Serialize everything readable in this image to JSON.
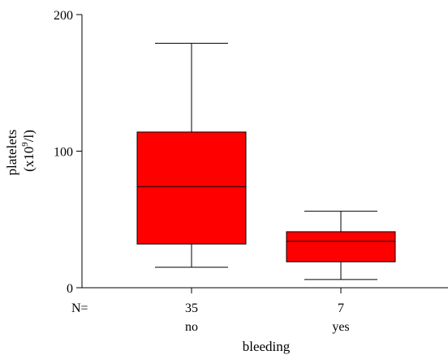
{
  "chart_data": {
    "type": "boxplot",
    "title": "",
    "xlabel": "bleeding",
    "ylabel_line1": "platelets",
    "ylabel_line2_prefix": "(x10",
    "ylabel_line2_sup": "9",
    "ylabel_line2_suffix": "/l)",
    "ylim": [
      0,
      200
    ],
    "yticks": [
      "0",
      "100",
      "200"
    ],
    "n_label": "N=",
    "categories": [
      "no",
      "yes"
    ],
    "counts": [
      "35",
      "7"
    ],
    "boxes": [
      {
        "category": "no",
        "whisker_low": 15,
        "q1": 32,
        "median": 74,
        "q3": 114,
        "whisker_high": 179
      },
      {
        "category": "yes",
        "whisker_low": 6,
        "q1": 19,
        "median": 34,
        "q3": 41,
        "whisker_high": 56
      }
    ],
    "box_color": "#ff0000",
    "line_color": "#000000"
  }
}
